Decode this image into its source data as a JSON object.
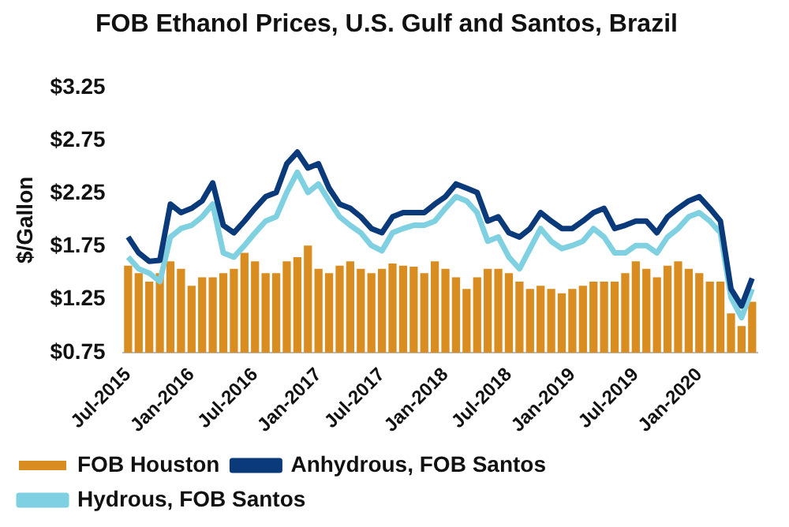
{
  "chart_data": {
    "type": "bar",
    "title": "FOB Ethanol Prices, U.S. Gulf and Santos, Brazil",
    "ylabel": "$/Gallon",
    "categories": [
      "Jul-2015",
      null,
      null,
      null,
      null,
      null,
      "Jan-2016",
      null,
      null,
      null,
      null,
      null,
      "Jul-2016",
      null,
      null,
      null,
      null,
      null,
      "Jan-2017",
      null,
      null,
      null,
      null,
      null,
      "Jul-2017",
      null,
      null,
      null,
      null,
      null,
      "Jan-2018",
      null,
      null,
      null,
      null,
      null,
      "Jul-2018",
      null,
      null,
      null,
      null,
      null,
      "Jan-2019",
      null,
      null,
      null,
      null,
      null,
      "Jul-2019",
      null,
      null,
      null,
      null,
      null,
      "Jan-2020",
      null,
      null,
      null,
      null,
      null
    ],
    "series": [
      {
        "name": "FOB Houston",
        "color": "#d98c1f",
        "values": [
          1.57,
          1.5,
          1.42,
          1.5,
          1.61,
          1.54,
          1.38,
          1.46,
          1.46,
          1.5,
          1.54,
          1.69,
          1.61,
          1.5,
          1.5,
          1.61,
          1.65,
          1.76,
          1.54,
          1.5,
          1.57,
          1.61,
          1.54,
          1.5,
          1.54,
          1.59,
          1.57,
          1.56,
          1.5,
          1.61,
          1.54,
          1.46,
          1.35,
          1.46,
          1.54,
          1.54,
          1.5,
          1.42,
          1.35,
          1.38,
          1.35,
          1.31,
          1.35,
          1.38,
          1.42,
          1.42,
          1.42,
          1.5,
          1.61,
          1.54,
          1.46,
          1.57,
          1.61,
          1.54,
          1.5,
          1.42,
          1.42,
          1.12,
          1.0,
          1.23
        ]
      },
      {
        "name": "Anhydrous, FOB Santos",
        "type": "line",
        "color": "#0b3a7a",
        "values": [
          1.84,
          1.69,
          1.61,
          1.62,
          2.15,
          2.07,
          2.11,
          2.18,
          2.35,
          1.95,
          1.88,
          1.99,
          2.11,
          2.22,
          2.26,
          2.53,
          2.64,
          2.49,
          2.53,
          2.3,
          2.15,
          2.11,
          2.03,
          1.92,
          1.88,
          2.03,
          2.07,
          2.07,
          2.07,
          2.15,
          2.22,
          2.34,
          2.3,
          2.26,
          1.99,
          2.03,
          1.88,
          1.84,
          1.92,
          2.07,
          1.99,
          1.92,
          1.92,
          1.99,
          2.07,
          2.11,
          1.92,
          1.95,
          1.99,
          1.99,
          1.88,
          2.03,
          2.11,
          2.18,
          2.22,
          2.11,
          1.99,
          1.35,
          1.19,
          1.45
        ]
      },
      {
        "name": "Hydrous, FOB Santos",
        "type": "line",
        "color": "#7fd0e0",
        "values": [
          1.65,
          1.54,
          1.5,
          1.42,
          1.84,
          1.92,
          1.95,
          2.03,
          2.15,
          1.69,
          1.65,
          1.76,
          1.88,
          1.99,
          2.03,
          2.26,
          2.45,
          2.26,
          2.34,
          2.18,
          2.03,
          1.95,
          1.88,
          1.76,
          1.71,
          1.88,
          1.92,
          1.95,
          1.95,
          1.99,
          2.11,
          2.22,
          2.18,
          2.07,
          1.8,
          1.84,
          1.65,
          1.54,
          1.73,
          1.92,
          1.8,
          1.73,
          1.76,
          1.8,
          1.92,
          1.84,
          1.69,
          1.69,
          1.76,
          1.76,
          1.69,
          1.84,
          1.92,
          2.03,
          2.07,
          1.99,
          1.88,
          1.27,
          1.08,
          1.35
        ]
      }
    ],
    "ylim": [
      0.75,
      3.25
    ],
    "yticks": [
      {
        "value": 0.75,
        "label": "$0.75"
      },
      {
        "value": 1.25,
        "label": "$1.25"
      },
      {
        "value": 1.75,
        "label": "$1.75"
      },
      {
        "value": 2.25,
        "label": "$2.25"
      },
      {
        "value": 2.75,
        "label": "$2.75"
      },
      {
        "value": 3.25,
        "label": "$3.25"
      }
    ],
    "grid": false,
    "legend": "bottom",
    "marker": "none",
    "line_style": "solid"
  }
}
